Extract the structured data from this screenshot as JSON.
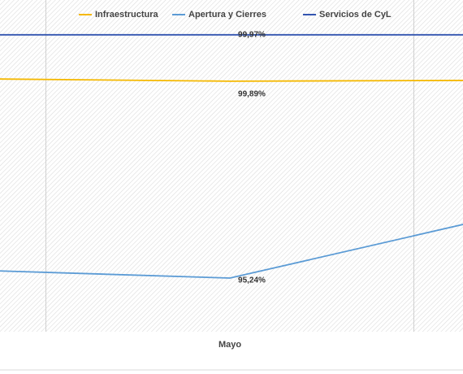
{
  "chart_data": {
    "type": "line",
    "categories": [
      null,
      "Mayo",
      null
    ],
    "series": [
      {
        "name": "Infraestructura",
        "color": "#f5b800",
        "values": [
          99.896,
          99.89,
          99.892
        ],
        "value_labels": [
          null,
          "99,89%",
          null
        ]
      },
      {
        "name": "Apertura y Cierres",
        "color": "#5b9bd5",
        "values": [
          95.31,
          95.24,
          95.76
        ],
        "value_labels": [
          null,
          "95,24%",
          null
        ],
        "axis": "y2"
      },
      {
        "name": "Servicios de CyL",
        "color": "#3355b0",
        "values": [
          99.97,
          99.97,
          99.97
        ],
        "value_labels": [
          null,
          "99,97%",
          null
        ]
      }
    ],
    "ylim": [
      99.458,
      100.03
    ],
    "y2lim": [
      94.91,
      96.95
    ],
    "grid": true,
    "legend": "top"
  }
}
